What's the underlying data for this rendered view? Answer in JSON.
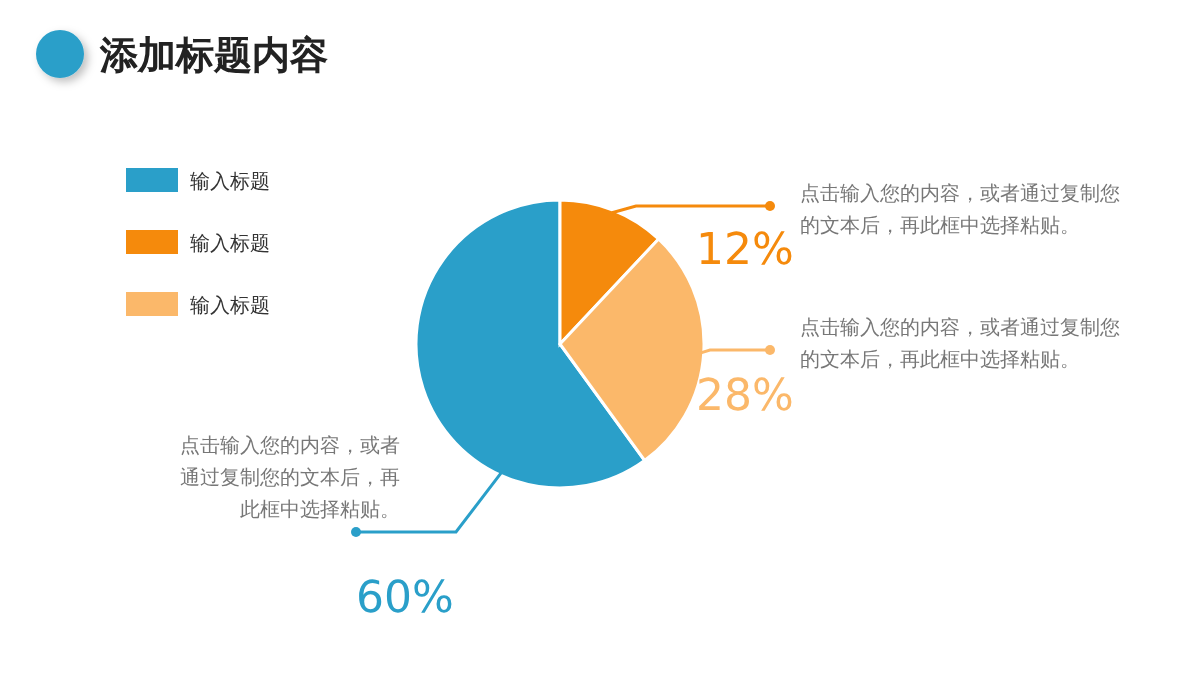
{
  "chart_data": {
    "type": "pie",
    "title": "添加标题内容",
    "categories": [
      "输入标题",
      "输入标题",
      "输入标题"
    ],
    "values": [
      60,
      12,
      28
    ],
    "colors": [
      "#2a9fc9",
      "#f58a0c",
      "#fbb86a"
    ],
    "value_labels": [
      "60%",
      "12%",
      "28%"
    ],
    "legend": "left",
    "annotations": [
      "点击输入您的内容，或者通过复制您的文本后，再此框中选择粘贴。",
      "点击输入您的内容，或者通过复制您的文本后，再此框中选择粘贴。",
      "点击输入您的内容，或者通过复制您的文本后，再此框中选择粘贴。"
    ]
  }
}
